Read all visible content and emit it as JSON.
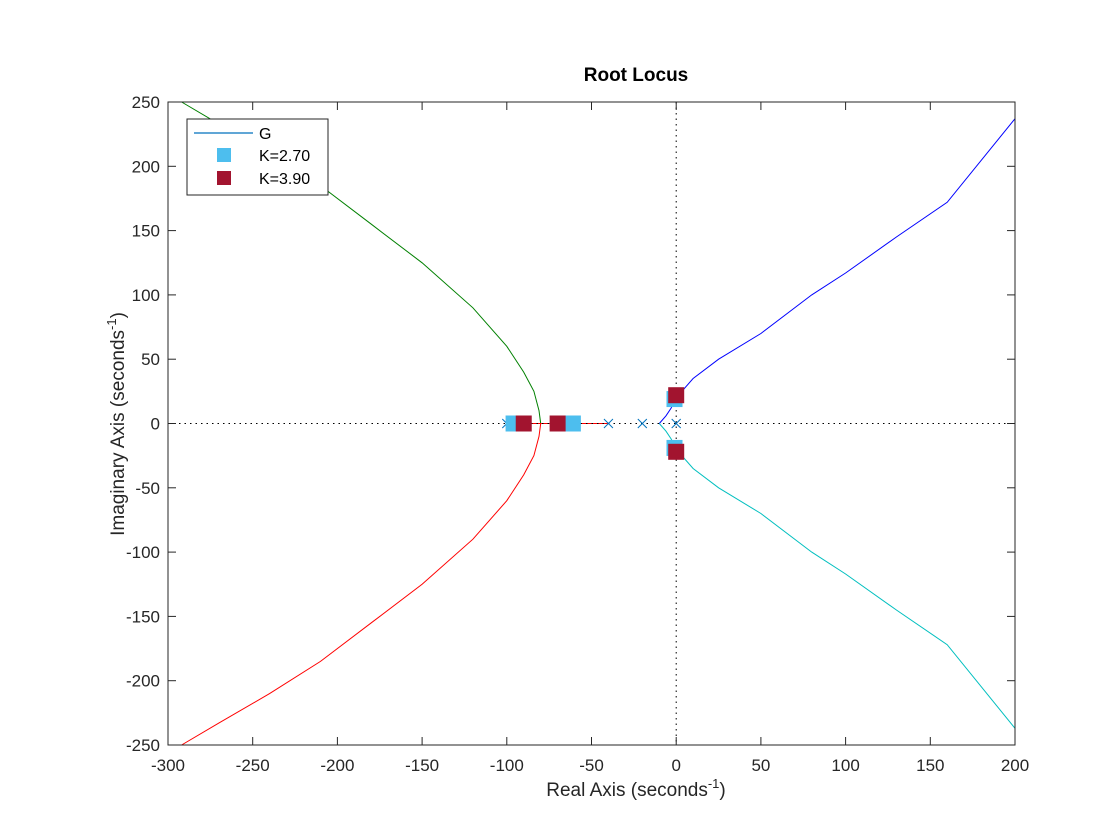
{
  "chart_data": {
    "type": "line",
    "title": "Root Locus",
    "xlabel": {
      "main": "Real Axis (seconds",
      "sup": "-1",
      "end": ")"
    },
    "ylabel": {
      "main": "Imaginary Axis (seconds",
      "sup": "-1",
      "end": ")"
    },
    "xlim": [
      -300,
      200
    ],
    "ylim": [
      -250,
      250
    ],
    "xticks": [
      -300,
      -250,
      -200,
      -150,
      -100,
      -50,
      0,
      50,
      100,
      150,
      200
    ],
    "yticks": [
      -250,
      -200,
      -150,
      -100,
      -50,
      0,
      50,
      100,
      150,
      200,
      250
    ],
    "xtick_labels": [
      "-300",
      "-250",
      "-200",
      "-150",
      "-100",
      "-50",
      "0",
      "50",
      "100",
      "150",
      "200"
    ],
    "ytick_labels": [
      "-250",
      "-200",
      "-150",
      "-100",
      "-50",
      "0",
      "50",
      "100",
      "150",
      "200",
      "250"
    ],
    "grid": false,
    "zero_lines": "dotted",
    "legend": {
      "placement": "top-left",
      "entries": [
        {
          "label": "G",
          "kind": "line",
          "color": "#0072bd"
        },
        {
          "label": "K=2.70",
          "kind": "square",
          "color": "#4dbeee"
        },
        {
          "label": "K=3.90",
          "kind": "square",
          "color": "#a2142f"
        }
      ]
    },
    "poles": [
      {
        "x": 0,
        "y": 0
      },
      {
        "x": -20,
        "y": 0
      },
      {
        "x": -40,
        "y": 0
      },
      {
        "x": -100,
        "y": 0
      }
    ],
    "pole_color": "#0072bd",
    "series": [
      {
        "color": "#0000ff",
        "points": [
          [
            -10,
            0
          ],
          [
            -6,
            6
          ],
          [
            -3,
            12
          ],
          [
            0,
            20
          ],
          [
            10,
            35
          ],
          [
            25,
            50
          ],
          [
            50,
            70
          ],
          [
            80,
            100
          ],
          [
            100,
            117
          ],
          [
            130,
            145
          ],
          [
            160,
            172
          ],
          [
            200,
            237
          ]
        ]
      },
      {
        "color": "#00bfbf",
        "points": [
          [
            -10,
            0
          ],
          [
            -6,
            -6
          ],
          [
            -3,
            -12
          ],
          [
            0,
            -20
          ],
          [
            10,
            -35
          ],
          [
            25,
            -50
          ],
          [
            50,
            -70
          ],
          [
            80,
            -100
          ],
          [
            100,
            -117
          ],
          [
            130,
            -145
          ],
          [
            160,
            -172
          ],
          [
            200,
            -237
          ]
        ]
      },
      {
        "color": "#008000",
        "points": [
          [
            -80,
            0
          ],
          [
            -81,
            10
          ],
          [
            -84,
            25
          ],
          [
            -90,
            40
          ],
          [
            -100,
            60
          ],
          [
            -120,
            90
          ],
          [
            -150,
            125
          ],
          [
            -180,
            155
          ],
          [
            -210,
            185
          ],
          [
            -240,
            210
          ],
          [
            -270,
            233
          ],
          [
            -292,
            250
          ]
        ]
      },
      {
        "color": "#ff0000",
        "points": [
          [
            -80,
            0
          ],
          [
            -81,
            -10
          ],
          [
            -84,
            -25
          ],
          [
            -90,
            -40
          ],
          [
            -100,
            -60
          ],
          [
            -120,
            -90
          ],
          [
            -150,
            -125
          ],
          [
            -180,
            -155
          ],
          [
            -210,
            -185
          ],
          [
            -240,
            -210
          ],
          [
            -270,
            -233
          ],
          [
            -292,
            -250
          ]
        ]
      },
      {
        "color": "#ff0000",
        "points": [
          [
            -100,
            0
          ],
          [
            -40,
            0
          ]
        ]
      }
    ],
    "markers": [
      {
        "set": "K=2.70",
        "color": "#4dbeee",
        "points": [
          [
            -96,
            0
          ],
          [
            -61,
            0
          ],
          [
            -1,
            19
          ],
          [
            -1,
            -19
          ]
        ]
      },
      {
        "set": "K=3.90",
        "color": "#a2142f",
        "points": [
          [
            -90,
            0
          ],
          [
            -70,
            0
          ],
          [
            0,
            22
          ],
          [
            0,
            -22
          ]
        ]
      }
    ]
  }
}
